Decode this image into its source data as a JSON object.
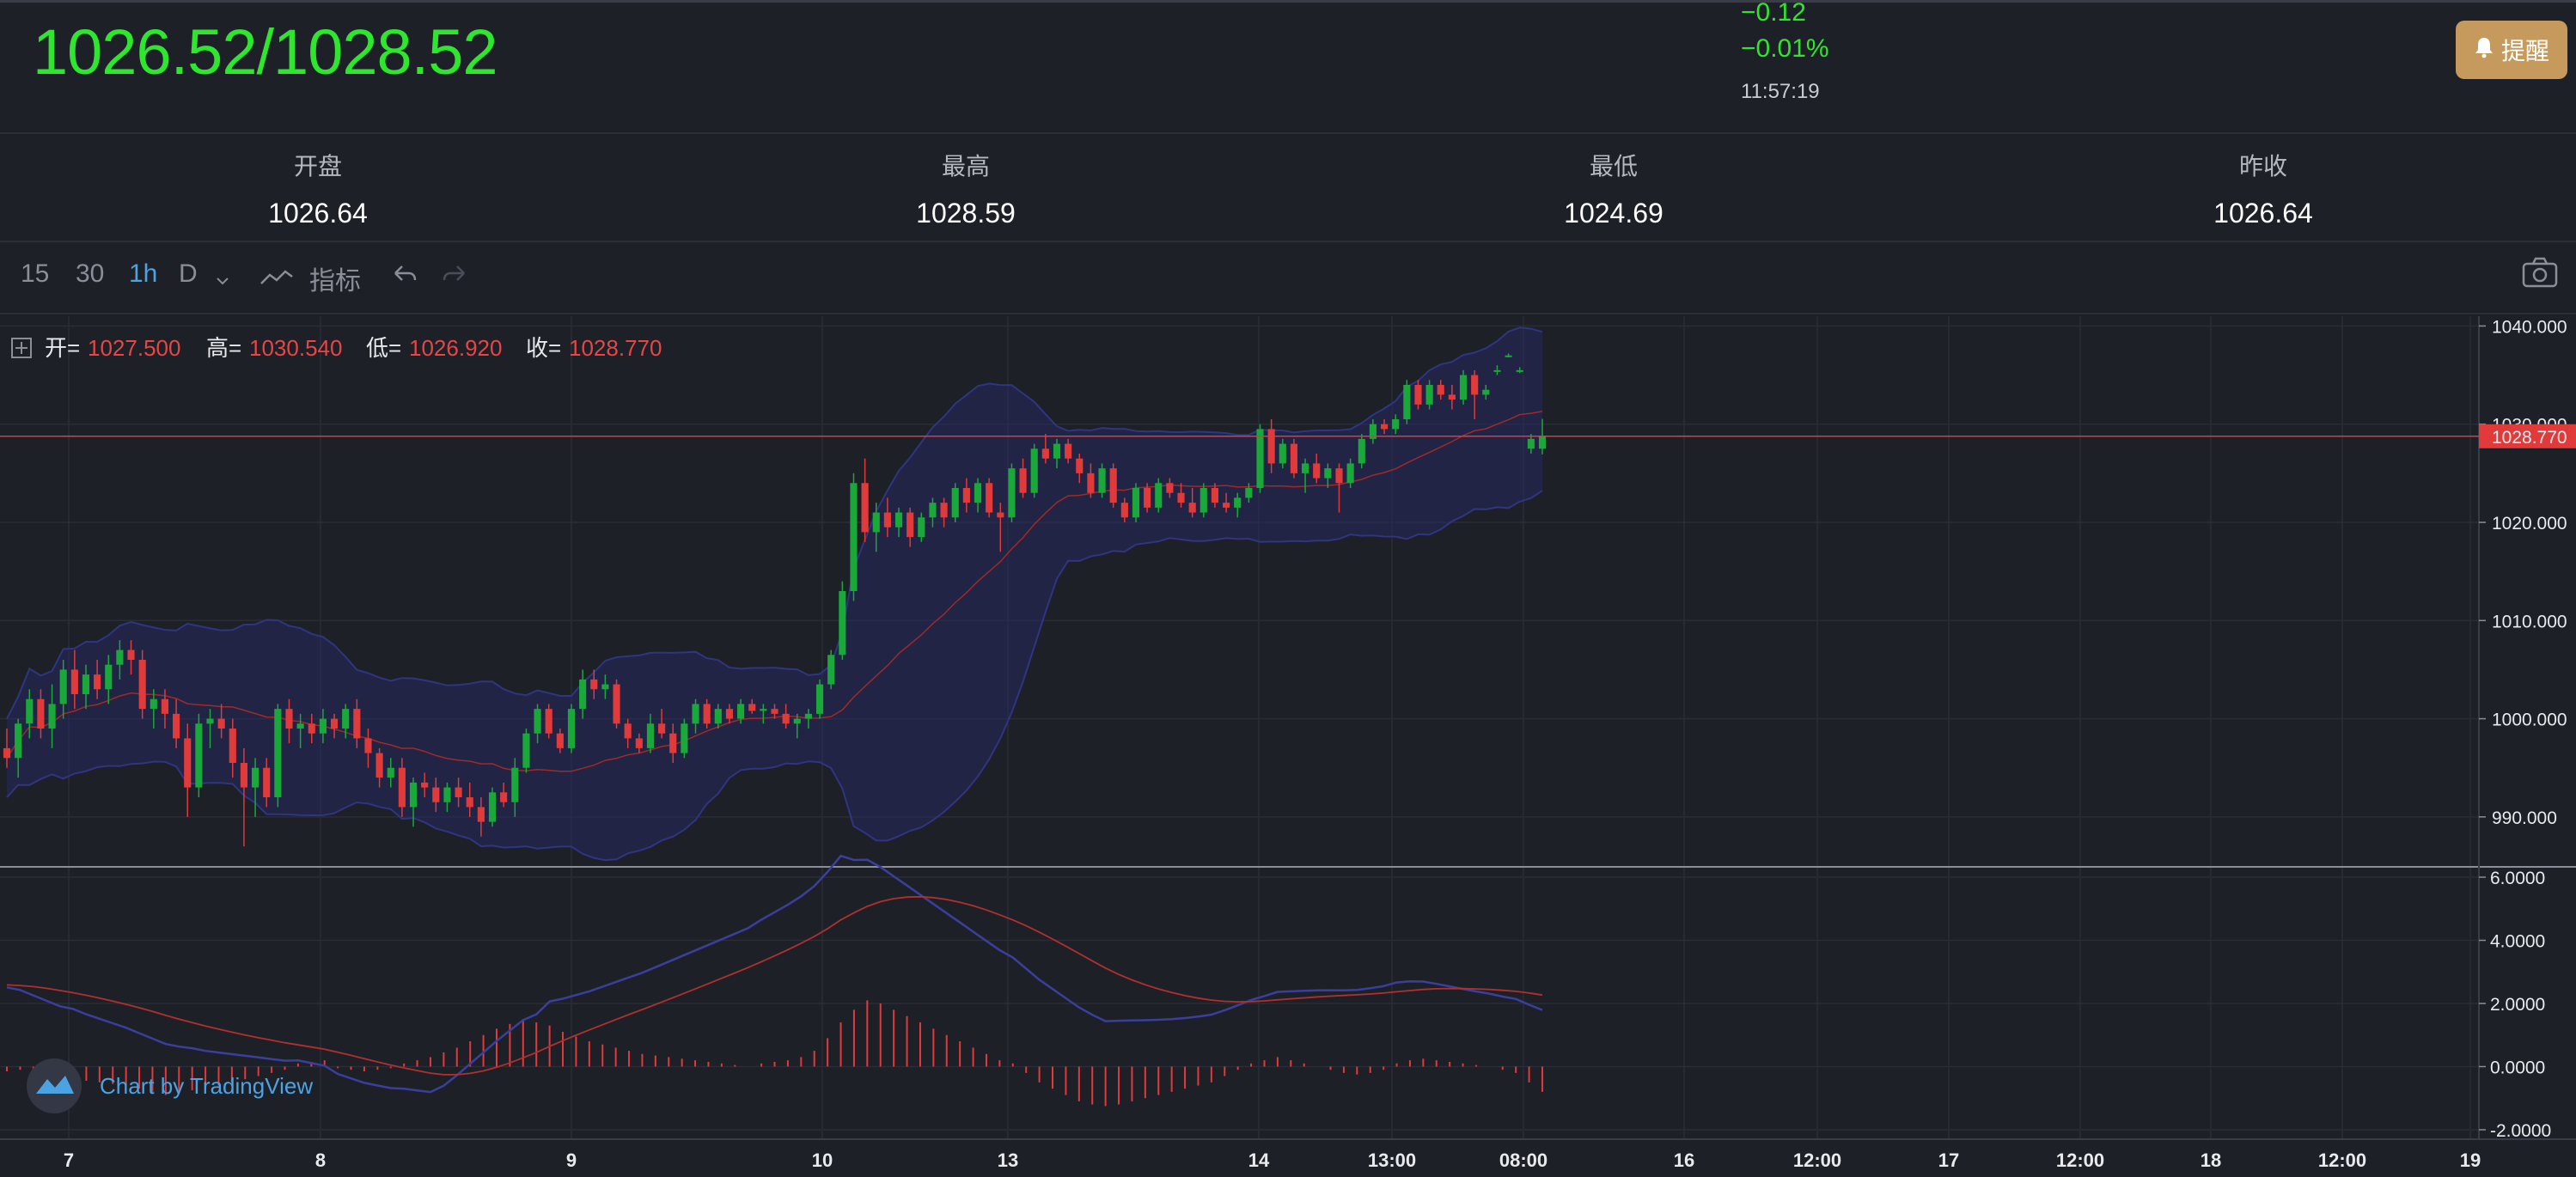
{
  "header": {
    "quote": "1026.52/1028.52",
    "change": "−0.12",
    "change_pct": "−0.01%",
    "time": "11:57:19",
    "alert_label": "提醒"
  },
  "stats": [
    {
      "label": "开盘",
      "value": "1026.64"
    },
    {
      "label": "最高",
      "value": "1028.59"
    },
    {
      "label": "最低",
      "value": "1024.69"
    },
    {
      "label": "昨收",
      "value": "1026.64"
    }
  ],
  "toolbar": {
    "intervals": [
      "15",
      "30",
      "1h",
      "D"
    ],
    "active_interval": "1h",
    "indicators_label": "指标"
  },
  "ohlc": {
    "open_label": "开=",
    "open": "1027.500",
    "high_label": "高=",
    "high": "1030.540",
    "low_label": "低=",
    "low": "1026.920",
    "close_label": "收=",
    "close": "1028.770"
  },
  "watermark": "Chart by TradingView",
  "colors": {
    "up": "#1aa83a",
    "down": "#e03a3a",
    "price_line": "#e03a3a",
    "band": "#2a2f6e",
    "quote": "#2ee62e",
    "accent": "#4ba3e3",
    "alert_button": "#c59a5c"
  },
  "icons": {
    "alert": "bell-icon",
    "dropdown": "chevron-down-icon",
    "indicators": "indicator-wave-icon",
    "undo": "undo-icon",
    "redo": "redo-icon",
    "snapshot": "camera-icon",
    "legend_toggle": "plus-box-icon",
    "logo": "tradingview-logo-icon"
  },
  "chart_data": {
    "type": "candlestick",
    "price_axis": {
      "ticks": [
        "1040.000",
        "1030.000",
        "1020.000",
        "1010.000",
        "1000.000",
        "990.000"
      ],
      "range": [
        985,
        1041
      ],
      "last_price": 1028.77,
      "last_price_label": "1028.770"
    },
    "macd_axis": {
      "ticks": [
        "6.0000",
        "4.0000",
        "2.0000",
        "0.0000",
        "-2.0000"
      ],
      "range": [
        -2.3,
        6.3
      ]
    },
    "x_ticks": [
      "7",
      "8",
      "9",
      "10",
      "13",
      "14",
      "13:00",
      "08:00",
      "16",
      "12:00",
      "17",
      "12:00",
      "18",
      "12:00",
      "19"
    ],
    "candles": [
      [
        997.0,
        999.0,
        995.0,
        996.0
      ],
      [
        996.0,
        1000.0,
        994.0,
        999.5
      ],
      [
        999.5,
        1003.0,
        998.0,
        1002.0
      ],
      [
        1002.0,
        1003.0,
        998.0,
        999.0
      ],
      [
        999.0,
        1003.5,
        997.0,
        1001.5
      ],
      [
        1001.5,
        1006.0,
        1000.0,
        1005.0
      ],
      [
        1005.0,
        1007.0,
        1001.0,
        1002.5
      ],
      [
        1002.5,
        1005.5,
        1001.0,
        1004.5
      ],
      [
        1004.5,
        1006.0,
        1002.0,
        1003.0
      ],
      [
        1003.0,
        1006.5,
        1001.5,
        1005.5
      ],
      [
        1005.5,
        1008.0,
        1004.0,
        1007.0
      ],
      [
        1007.0,
        1008.0,
        1004.5,
        1006.0
      ],
      [
        1006.0,
        1007.0,
        1000.0,
        1001.0
      ],
      [
        1001.0,
        1003.0,
        999.0,
        1002.0
      ],
      [
        1002.0,
        1003.0,
        999.0,
        1000.5
      ],
      [
        1000.5,
        1002.0,
        997.0,
        998.0
      ],
      [
        998.0,
        999.5,
        990.0,
        993.0
      ],
      [
        993.0,
        1000.5,
        992.0,
        999.5
      ],
      [
        999.5,
        1001.0,
        997.0,
        1000.0
      ],
      [
        1000.0,
        1001.5,
        998.0,
        999.0
      ],
      [
        999.0,
        1000.0,
        994.0,
        995.5
      ],
      [
        995.5,
        997.0,
        987.0,
        993.0
      ],
      [
        993.0,
        996.0,
        990.0,
        995.0
      ],
      [
        995.0,
        996.0,
        991.0,
        992.0
      ],
      [
        992.0,
        1001.5,
        991.0,
        1001.0
      ],
      [
        1001.0,
        1002.0,
        997.5,
        999.0
      ],
      [
        999.0,
        1000.5,
        997.0,
        999.5
      ],
      [
        999.5,
        1000.5,
        997.5,
        998.5
      ],
      [
        998.5,
        1001.0,
        997.5,
        1000.0
      ],
      [
        1000.0,
        1000.5,
        998.0,
        999.0
      ],
      [
        999.0,
        1001.5,
        998.0,
        1001.0
      ],
      [
        1001.0,
        1002.0,
        997.0,
        998.0
      ],
      [
        998.0,
        999.0,
        995.0,
        996.5
      ],
      [
        996.5,
        997.0,
        993.0,
        994.0
      ],
      [
        994.0,
        996.0,
        993.0,
        995.0
      ],
      [
        995.0,
        996.0,
        990.0,
        991.0
      ],
      [
        991.0,
        994.0,
        989.0,
        993.5
      ],
      [
        993.5,
        994.5,
        992.0,
        993.0
      ],
      [
        993.0,
        994.0,
        990.5,
        991.5
      ],
      [
        991.5,
        993.5,
        990.5,
        993.0
      ],
      [
        993.0,
        994.0,
        991.0,
        992.0
      ],
      [
        992.0,
        993.5,
        990.0,
        991.0
      ],
      [
        991.0,
        992.0,
        988.0,
        989.5
      ],
      [
        989.5,
        993.0,
        989.0,
        992.5
      ],
      [
        992.5,
        993.5,
        991.0,
        991.5
      ],
      [
        991.5,
        996.0,
        990.0,
        995.0
      ],
      [
        995.0,
        999.0,
        994.5,
        998.5
      ],
      [
        998.5,
        1001.5,
        997.5,
        1001.0
      ],
      [
        1001.0,
        1001.5,
        998.0,
        998.5
      ],
      [
        998.5,
        999.0,
        996.5,
        997.0
      ],
      [
        997.0,
        1001.5,
        996.5,
        1001.0
      ],
      [
        1001.0,
        1005.0,
        1000.0,
        1004.0
      ],
      [
        1004.0,
        1005.0,
        1002.0,
        1003.0
      ],
      [
        1003.0,
        1004.5,
        1002.0,
        1003.5
      ],
      [
        1003.5,
        1004.0,
        999.0,
        999.5
      ],
      [
        999.5,
        1000.0,
        997.0,
        998.0
      ],
      [
        998.0,
        998.5,
        996.5,
        997.0
      ],
      [
        997.0,
        1000.5,
        996.5,
        999.5
      ],
      [
        999.5,
        1001.0,
        998.0,
        998.5
      ],
      [
        998.5,
        999.5,
        995.5,
        996.5
      ],
      [
        996.5,
        1000.0,
        996.0,
        999.5
      ],
      [
        999.5,
        1002.0,
        998.5,
        1001.5
      ],
      [
        1001.5,
        1002.0,
        999.0,
        999.5
      ],
      [
        999.5,
        1001.5,
        999.0,
        1001.0
      ],
      [
        1001.0,
        1001.5,
        999.5,
        1000.0
      ],
      [
        1000.0,
        1002.0,
        999.5,
        1001.5
      ],
      [
        1001.5,
        1002.0,
        1000.5,
        1000.8
      ],
      [
        1000.8,
        1001.5,
        999.5,
        1001.0
      ],
      [
        1001.0,
        1001.5,
        1000.0,
        1000.5
      ],
      [
        1000.5,
        1001.5,
        999.0,
        999.5
      ],
      [
        999.5,
        1000.5,
        998.0,
        1000.0
      ],
      [
        1000.0,
        1001.0,
        999.0,
        1000.5
      ],
      [
        1000.5,
        1004.0,
        1000.0,
        1003.5
      ],
      [
        1003.5,
        1007.0,
        1003.0,
        1006.5
      ],
      [
        1006.5,
        1014.0,
        1006.0,
        1013.0
      ],
      [
        1013.0,
        1025.0,
        1012.0,
        1024.0
      ],
      [
        1024.0,
        1026.5,
        1018.0,
        1019.0
      ],
      [
        1019.0,
        1022.0,
        1017.0,
        1021.0
      ],
      [
        1021.0,
        1022.5,
        1018.5,
        1019.5
      ],
      [
        1019.5,
        1021.5,
        1018.5,
        1021.0
      ],
      [
        1021.0,
        1021.5,
        1017.5,
        1018.5
      ],
      [
        1018.5,
        1021.0,
        1018.0,
        1020.5
      ],
      [
        1020.5,
        1022.5,
        1019.5,
        1022.0
      ],
      [
        1022.0,
        1022.5,
        1019.5,
        1020.5
      ],
      [
        1020.5,
        1024.0,
        1020.0,
        1023.5
      ],
      [
        1023.5,
        1024.5,
        1021.0,
        1022.0
      ],
      [
        1022.0,
        1024.5,
        1021.0,
        1024.0
      ],
      [
        1024.0,
        1024.5,
        1020.5,
        1021.0
      ],
      [
        1021.0,
        1022.0,
        1017.0,
        1020.5
      ],
      [
        1020.5,
        1026.0,
        1020.0,
        1025.5
      ],
      [
        1025.5,
        1026.5,
        1022.5,
        1023.0
      ],
      [
        1023.0,
        1028.0,
        1022.5,
        1027.5
      ],
      [
        1027.5,
        1029.0,
        1026.0,
        1026.5
      ],
      [
        1026.5,
        1028.5,
        1025.5,
        1028.0
      ],
      [
        1028.0,
        1028.5,
        1026.0,
        1026.5
      ],
      [
        1026.5,
        1027.0,
        1024.0,
        1025.0
      ],
      [
        1025.0,
        1026.0,
        1022.5,
        1023.0
      ],
      [
        1023.0,
        1026.0,
        1022.5,
        1025.5
      ],
      [
        1025.5,
        1026.0,
        1021.5,
        1022.0
      ],
      [
        1022.0,
        1022.5,
        1020.0,
        1020.5
      ],
      [
        1020.5,
        1024.0,
        1020.0,
        1023.5
      ],
      [
        1023.5,
        1024.0,
        1021.0,
        1021.5
      ],
      [
        1021.5,
        1024.5,
        1021.0,
        1024.0
      ],
      [
        1024.0,
        1024.5,
        1022.5,
        1023.0
      ],
      [
        1023.0,
        1024.0,
        1021.5,
        1022.0
      ],
      [
        1022.0,
        1023.5,
        1020.5,
        1021.0
      ],
      [
        1021.0,
        1024.0,
        1020.5,
        1023.5
      ],
      [
        1023.5,
        1024.0,
        1021.5,
        1022.0
      ],
      [
        1022.0,
        1023.0,
        1021.0,
        1021.5
      ],
      [
        1021.5,
        1023.0,
        1020.5,
        1022.5
      ],
      [
        1022.5,
        1024.0,
        1022.0,
        1023.5
      ],
      [
        1023.5,
        1030.0,
        1023.0,
        1029.5
      ],
      [
        1029.5,
        1030.5,
        1025.0,
        1026.0
      ],
      [
        1026.0,
        1028.5,
        1025.5,
        1028.0
      ],
      [
        1028.0,
        1028.5,
        1024.5,
        1025.0
      ],
      [
        1025.0,
        1026.5,
        1023.0,
        1026.0
      ],
      [
        1026.0,
        1027.0,
        1024.0,
        1024.5
      ],
      [
        1024.5,
        1026.0,
        1023.5,
        1025.5
      ],
      [
        1025.5,
        1026.0,
        1021.0,
        1024.0
      ],
      [
        1024.0,
        1026.5,
        1023.5,
        1026.0
      ],
      [
        1026.0,
        1029.0,
        1025.5,
        1028.5
      ],
      [
        1028.5,
        1030.5,
        1028.0,
        1030.0
      ],
      [
        1030.0,
        1030.5,
        1029.0,
        1029.5
      ],
      [
        1029.5,
        1031.0,
        1029.0,
        1030.5
      ],
      [
        1030.5,
        1034.5,
        1030.0,
        1034.0
      ],
      [
        1034.0,
        1034.5,
        1031.5,
        1032.0
      ],
      [
        1032.0,
        1034.5,
        1031.5,
        1034.0
      ],
      [
        1034.0,
        1034.5,
        1032.5,
        1033.0
      ],
      [
        1033.0,
        1034.0,
        1031.5,
        1032.5
      ],
      [
        1032.5,
        1035.5,
        1032.0,
        1035.0
      ],
      [
        1035.0,
        1035.5,
        1030.5,
        1033.0
      ],
      [
        1033.0,
        1034.0,
        1032.5,
        1033.5
      ],
      [
        1035.5,
        1036.0,
        1035.0,
        1035.5
      ],
      [
        1037.0,
        1037.2,
        1036.8,
        1037.0
      ],
      [
        1035.5,
        1035.8,
        1035.2,
        1035.5
      ],
      [
        1027.5,
        1029.0,
        1027.0,
        1028.5
      ],
      [
        1027.5,
        1030.54,
        1026.92,
        1028.77
      ]
    ],
    "macd_histogram": [
      -0.15,
      -0.1,
      -0.2,
      -0.3,
      -0.4,
      -0.35,
      -0.45,
      -0.5,
      -0.55,
      -0.6,
      -0.7,
      -0.8,
      -0.9,
      -0.85,
      -0.75,
      -0.7,
      -0.6,
      -0.5,
      -0.4,
      -0.3,
      -0.2,
      -0.1,
      0.1,
      0.15,
      0.2,
      -0.05,
      -0.1,
      -0.15,
      -0.1,
      -0.05,
      0.1,
      0.2,
      0.3,
      0.45,
      0.6,
      0.8,
      1.0,
      1.2,
      1.35,
      1.5,
      1.4,
      1.3,
      1.1,
      0.95,
      0.8,
      0.7,
      0.6,
      0.5,
      0.4,
      0.35,
      0.3,
      0.25,
      0.2,
      0.15,
      0.1,
      0.05,
      0.0,
      0.1,
      0.15,
      0.2,
      0.3,
      0.5,
      0.9,
      1.4,
      1.8,
      2.1,
      2.0,
      1.8,
      1.6,
      1.4,
      1.2,
      1.0,
      0.8,
      0.6,
      0.4,
      0.2,
      0.1,
      -0.2,
      -0.5,
      -0.7,
      -0.9,
      -1.1,
      -1.2,
      -1.25,
      -1.2,
      -1.1,
      -1.0,
      -0.9,
      -0.8,
      -0.7,
      -0.6,
      -0.5,
      -0.3,
      -0.1,
      0.1,
      0.2,
      0.3,
      0.2,
      0.1,
      0.0,
      -0.1,
      -0.2,
      -0.25,
      -0.2,
      -0.1,
      0.1,
      0.2,
      0.25,
      0.2,
      0.15,
      0.1,
      0.05,
      0.0,
      -0.1,
      -0.2,
      -0.5,
      -0.8
    ]
  }
}
